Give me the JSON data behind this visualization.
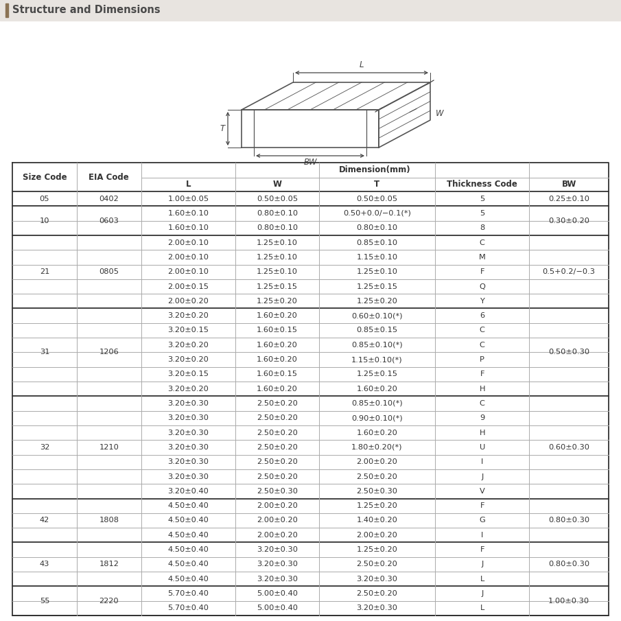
{
  "title": "Structure and Dimensions",
  "title_bg": "#e8e4e0",
  "title_bar_color": "#8B7355",
  "table_data": [
    [
      "05",
      "0402",
      "1.00±0.05",
      "0.50±0.05",
      "0.50±0.05",
      "5",
      "0.25±0.10"
    ],
    [
      "10",
      "0603",
      "1.60±0.10",
      "0.80±0.10",
      "0.50+0.0/−0.1(*)",
      "5",
      "0.30±0.20"
    ],
    [
      "",
      "",
      "1.60±0.10",
      "0.80±0.10",
      "0.80±0.10",
      "8",
      ""
    ],
    [
      "21",
      "0805",
      "2.00±0.10",
      "1.25±0.10",
      "0.85±0.10",
      "C",
      "0.5+0.2/−0.3"
    ],
    [
      "",
      "",
      "2.00±0.10",
      "1.25±0.10",
      "1.15±0.10",
      "M",
      ""
    ],
    [
      "",
      "",
      "2.00±0.10",
      "1.25±0.10",
      "1.25±0.10",
      "F",
      ""
    ],
    [
      "",
      "",
      "2.00±0.15",
      "1.25±0.15",
      "1.25±0.15",
      "Q",
      ""
    ],
    [
      "",
      "",
      "2.00±0.20",
      "1.25±0.20",
      "1.25±0.20",
      "Y",
      ""
    ],
    [
      "31",
      "1206",
      "3.20±0.20",
      "1.60±0.20",
      "0.60±0.10(*)",
      "6",
      "0.50±0.30"
    ],
    [
      "",
      "",
      "3.20±0.15",
      "1.60±0.15",
      "0.85±0.15",
      "C",
      ""
    ],
    [
      "",
      "",
      "3.20±0.20",
      "1.60±0.20",
      "0.85±0.10(*)",
      "C",
      ""
    ],
    [
      "",
      "",
      "3.20±0.20",
      "1.60±0.20",
      "1.15±0.10(*)",
      "P",
      ""
    ],
    [
      "",
      "",
      "3.20±0.15",
      "1.60±0.15",
      "1.25±0.15",
      "F",
      ""
    ],
    [
      "",
      "",
      "3.20±0.20",
      "1.60±0.20",
      "1.60±0.20",
      "H",
      ""
    ],
    [
      "32",
      "1210",
      "3.20±0.30",
      "2.50±0.20",
      "0.85±0.10(*)",
      "C",
      "0.60±0.30"
    ],
    [
      "",
      "",
      "3.20±0.30",
      "2.50±0.20",
      "0.90±0.10(*)",
      "9",
      ""
    ],
    [
      "",
      "",
      "3.20±0.30",
      "2.50±0.20",
      "1.60±0.20",
      "H",
      ""
    ],
    [
      "",
      "",
      "3.20±0.30",
      "2.50±0.20",
      "1.80±0.20(*)",
      "U",
      ""
    ],
    [
      "",
      "",
      "3.20±0.30",
      "2.50±0.20",
      "2.00±0.20",
      "I",
      ""
    ],
    [
      "",
      "",
      "3.20±0.30",
      "2.50±0.20",
      "2.50±0.20",
      "J",
      ""
    ],
    [
      "",
      "",
      "3.20±0.40",
      "2.50±0.30",
      "2.50±0.30",
      "V",
      ""
    ],
    [
      "42",
      "1808",
      "4.50±0.40",
      "2.00±0.20",
      "1.25±0.20",
      "F",
      "0.80±0.30"
    ],
    [
      "",
      "",
      "4.50±0.40",
      "2.00±0.20",
      "1.40±0.20",
      "G",
      ""
    ],
    [
      "",
      "",
      "4.50±0.40",
      "2.00±0.20",
      "2.00±0.20",
      "I",
      ""
    ],
    [
      "43",
      "1812",
      "4.50±0.40",
      "3.20±0.30",
      "1.25±0.20",
      "F",
      "0.80±0.30"
    ],
    [
      "",
      "",
      "4.50±0.40",
      "3.20±0.30",
      "2.50±0.20",
      "J",
      ""
    ],
    [
      "",
      "",
      "4.50±0.40",
      "3.20±0.30",
      "3.20±0.30",
      "L",
      ""
    ],
    [
      "55",
      "2220",
      "5.70±0.40",
      "5.00±0.40",
      "2.50±0.20",
      "J",
      "1.00±0.30"
    ],
    [
      "",
      "",
      "5.70±0.40",
      "5.00±0.40",
      "3.20±0.30",
      "L",
      ""
    ]
  ],
  "group_spans": [
    {
      "size": "05",
      "eia": "0402",
      "rows": [
        0
      ],
      "bw": "0.25±0.10"
    },
    {
      "size": "10",
      "eia": "0603",
      "rows": [
        1,
        2
      ],
      "bw": "0.30±0.20"
    },
    {
      "size": "21",
      "eia": "0805",
      "rows": [
        3,
        4,
        5,
        6,
        7
      ],
      "bw": "0.5+0.2/−0.3"
    },
    {
      "size": "31",
      "eia": "1206",
      "rows": [
        8,
        9,
        10,
        11,
        12,
        13
      ],
      "bw": "0.50±0.30"
    },
    {
      "size": "32",
      "eia": "1210",
      "rows": [
        14,
        15,
        16,
        17,
        18,
        19,
        20
      ],
      "bw": "0.60±0.30"
    },
    {
      "size": "42",
      "eia": "1808",
      "rows": [
        21,
        22,
        23
      ],
      "bw": "0.80±0.30"
    },
    {
      "size": "43",
      "eia": "1812",
      "rows": [
        24,
        25,
        26
      ],
      "bw": "0.80±0.30"
    },
    {
      "size": "55",
      "eia": "2220",
      "rows": [
        27,
        28
      ],
      "bw": "1.00±0.30"
    }
  ],
  "thick_line": "#333333",
  "thin_line": "#aaaaaa",
  "text_color": "#333333"
}
